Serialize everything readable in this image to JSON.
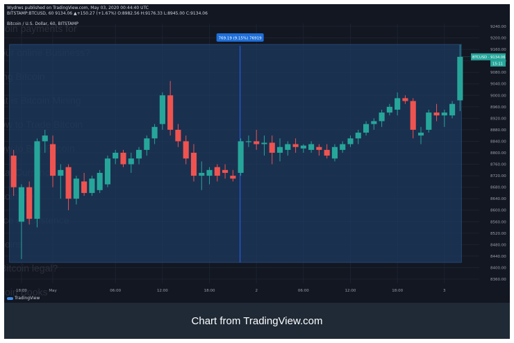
{
  "header": {
    "author_line": "Wydrws published on TradingView.com, May 03, 2020 00:44:40 UTC",
    "ohlc_line": "BITSTAMP:BTCUSD, 60 9134.06 ▲+150.27 (+1.67%) O:8982.56 H:9176.33 L:8945.00 C:9134.06",
    "symbol_line": "Bitcoin / U.S. Dollar, 60, BITSTAMP"
  },
  "bg_lines": [
    "coin payments for",
    "our online Business?",
    "ing Bitcoin",
    "at is Bitcoin Mining",
    "ow to Trade Bitcoin",
    "ow to Buy Bitcoin",
    "ital Currency",
    "coinage",
    "rce of Existence",
    "coins",
    "Bitcoin legal?",
    "coin Books"
  ],
  "measure": {
    "label": "769.19 (9.15%) 76919"
  },
  "last_price": {
    "symbol_label": "BTCUSD · 9134.06",
    "countdown": "15:11"
  },
  "logo_text": "TradingView",
  "caption": "Chart from TradingView.com",
  "colors": {
    "up": "#26a69a",
    "down": "#ef5350",
    "background": "#131722",
    "measure_fill": "#1e3a5f",
    "measure_line": "#2962ff",
    "caption_bg": "#1f2a36"
  },
  "chart_data": {
    "type": "candlestick",
    "ylim": [
      8360,
      9280
    ],
    "yticks": [
      "9240.00",
      "9200.00",
      "9160.00",
      "9120.00",
      "9080.00",
      "9040.00",
      "9000.00",
      "8960.00",
      "8920.00",
      "8880.00",
      "8840.00",
      "8800.00",
      "8760.00",
      "8720.00",
      "8680.00",
      "8640.00",
      "8600.00",
      "8560.00",
      "8520.00",
      "8480.00",
      "8440.00",
      "8400.00",
      "8360.00"
    ],
    "xticks": [
      {
        "label": "18:00",
        "i": 1
      },
      {
        "label": "May",
        "i": 5
      },
      {
        "label": "06:00",
        "i": 13
      },
      {
        "label": "12:00",
        "i": 19
      },
      {
        "label": "18:00",
        "i": 25
      },
      {
        "label": "2",
        "i": 31
      },
      {
        "label": "06:00",
        "i": 37
      },
      {
        "label": "12:00",
        "i": 43
      },
      {
        "label": "18:00",
        "i": 49
      },
      {
        "label": "3",
        "i": 55
      }
    ],
    "grid": true,
    "candles": [
      {
        "o": 8790,
        "h": 8810,
        "l": 8650,
        "c": 8680
      },
      {
        "o": 8560,
        "h": 8690,
        "l": 8430,
        "c": 8680
      },
      {
        "o": 8680,
        "h": 8700,
        "l": 8550,
        "c": 8570
      },
      {
        "o": 8570,
        "h": 8850,
        "l": 8540,
        "c": 8840
      },
      {
        "o": 8840,
        "h": 8880,
        "l": 8800,
        "c": 8860
      },
      {
        "o": 8830,
        "h": 8860,
        "l": 8680,
        "c": 8720
      },
      {
        "o": 8720,
        "h": 8760,
        "l": 8640,
        "c": 8740
      },
      {
        "o": 8750,
        "h": 8760,
        "l": 8600,
        "c": 8640
      },
      {
        "o": 8640,
        "h": 8720,
        "l": 8620,
        "c": 8710
      },
      {
        "o": 8700,
        "h": 8730,
        "l": 8650,
        "c": 8660
      },
      {
        "o": 8660,
        "h": 8720,
        "l": 8650,
        "c": 8710
      },
      {
        "o": 8670,
        "h": 8740,
        "l": 8660,
        "c": 8730
      },
      {
        "o": 8690,
        "h": 8790,
        "l": 8680,
        "c": 8780
      },
      {
        "o": 8780,
        "h": 8810,
        "l": 8760,
        "c": 8800
      },
      {
        "o": 8800,
        "h": 8810,
        "l": 8750,
        "c": 8760
      },
      {
        "o": 8760,
        "h": 8800,
        "l": 8730,
        "c": 8780
      },
      {
        "o": 8780,
        "h": 8820,
        "l": 8760,
        "c": 8810
      },
      {
        "o": 8810,
        "h": 8860,
        "l": 8790,
        "c": 8850
      },
      {
        "o": 8850,
        "h": 8900,
        "l": 8830,
        "c": 8890
      },
      {
        "o": 8900,
        "h": 9010,
        "l": 8880,
        "c": 9000
      },
      {
        "o": 9000,
        "h": 9050,
        "l": 8860,
        "c": 8880
      },
      {
        "o": 8880,
        "h": 8900,
        "l": 8820,
        "c": 8840
      },
      {
        "o": 8840,
        "h": 8860,
        "l": 8760,
        "c": 8780
      },
      {
        "o": 8800,
        "h": 8830,
        "l": 8700,
        "c": 8720
      },
      {
        "o": 8720,
        "h": 8770,
        "l": 8670,
        "c": 8730
      },
      {
        "o": 8720,
        "h": 8750,
        "l": 8690,
        "c": 8740
      },
      {
        "o": 8750,
        "h": 8760,
        "l": 8700,
        "c": 8720
      },
      {
        "o": 8740,
        "h": 8760,
        "l": 8710,
        "c": 8730
      },
      {
        "o": 8720,
        "h": 8740,
        "l": 8700,
        "c": 8710
      },
      {
        "o": 8730,
        "h": 8850,
        "l": 8720,
        "c": 8840
      },
      {
        "o": 8840,
        "h": 8860,
        "l": 8820,
        "c": 8840
      },
      {
        "o": 8840,
        "h": 8880,
        "l": 8810,
        "c": 8830
      },
      {
        "o": 8830,
        "h": 8860,
        "l": 8790,
        "c": 8835
      },
      {
        "o": 8835,
        "h": 8860,
        "l": 8760,
        "c": 8800
      },
      {
        "o": 8800,
        "h": 8850,
        "l": 8770,
        "c": 8820
      },
      {
        "o": 8810,
        "h": 8840,
        "l": 8790,
        "c": 8830
      },
      {
        "o": 8830,
        "h": 8850,
        "l": 8800,
        "c": 8820
      },
      {
        "o": 8815,
        "h": 8830,
        "l": 8800,
        "c": 8825
      },
      {
        "o": 8810,
        "h": 8840,
        "l": 8800,
        "c": 8830
      },
      {
        "o": 8820,
        "h": 8830,
        "l": 8790,
        "c": 8810
      },
      {
        "o": 8810,
        "h": 8830,
        "l": 8780,
        "c": 8790
      },
      {
        "o": 8780,
        "h": 8830,
        "l": 8770,
        "c": 8820
      },
      {
        "o": 8810,
        "h": 8840,
        "l": 8800,
        "c": 8830
      },
      {
        "o": 8830,
        "h": 8860,
        "l": 8820,
        "c": 8850
      },
      {
        "o": 8850,
        "h": 8880,
        "l": 8830,
        "c": 8870
      },
      {
        "o": 8870,
        "h": 8910,
        "l": 8860,
        "c": 8900
      },
      {
        "o": 8900,
        "h": 8920,
        "l": 8880,
        "c": 8910
      },
      {
        "o": 8910,
        "h": 8950,
        "l": 8890,
        "c": 8940
      },
      {
        "o": 8940,
        "h": 8970,
        "l": 8930,
        "c": 8960
      },
      {
        "o": 8950,
        "h": 9010,
        "l": 8930,
        "c": 8990
      },
      {
        "o": 8990,
        "h": 9000,
        "l": 8970,
        "c": 8980
      },
      {
        "o": 8980,
        "h": 8990,
        "l": 8850,
        "c": 8880
      },
      {
        "o": 8860,
        "h": 8890,
        "l": 8830,
        "c": 8870
      },
      {
        "o": 8880,
        "h": 8950,
        "l": 8870,
        "c": 8940
      },
      {
        "o": 8940,
        "h": 8970,
        "l": 8910,
        "c": 8930
      },
      {
        "o": 8930,
        "h": 8950,
        "l": 8890,
        "c": 8940
      },
      {
        "o": 8930,
        "h": 8980,
        "l": 8920,
        "c": 8970
      },
      {
        "o": 8982.56,
        "h": 9176.33,
        "l": 8945,
        "c": 9134.06
      }
    ]
  }
}
